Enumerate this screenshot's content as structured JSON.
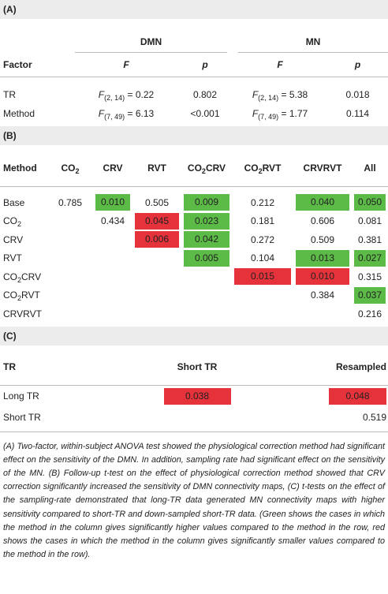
{
  "section_a": {
    "label": "(A)",
    "header": {
      "factor": "Factor",
      "groups": [
        "DMN",
        "MN"
      ],
      "columns": [
        "F",
        "p",
        "F",
        "p"
      ]
    },
    "rows": [
      {
        "factor": "TR",
        "cells": [
          [
            "F",
            "(2, 14)",
            " = 0.22"
          ],
          "0.802",
          [
            "F",
            "(2, 14)",
            " = 5.38"
          ],
          "0.018"
        ]
      },
      {
        "factor": "Method",
        "cells": [
          [
            "F",
            "(7, 49)",
            " = 6.13"
          ],
          "<0.001",
          [
            "F",
            "(7, 49)",
            " = 1.77"
          ],
          "0.114"
        ]
      }
    ]
  },
  "section_b": {
    "label": "(B)",
    "columns": [
      "Method",
      [
        "CO",
        "2"
      ],
      "CRV",
      "RVT",
      [
        "CO",
        "2",
        "CRV"
      ],
      [
        "CO",
        "2",
        "RVT"
      ],
      "CRVRVT",
      "All"
    ],
    "rows": [
      {
        "method": "Base",
        "cells": [
          "0.785",
          {
            "value": "0.010",
            "color": "#5cba47"
          },
          "0.505",
          {
            "value": "0.009",
            "color": "#5cba47"
          },
          "0.212",
          {
            "value": "0.040",
            "color": "#5cba47"
          },
          {
            "value": "0.050",
            "color": "#5cba47"
          }
        ]
      },
      {
        "method": [
          "CO",
          "2"
        ],
        "cells": [
          null,
          "0.434",
          {
            "value": "0.045",
            "color": "#e6323b"
          },
          {
            "value": "0.023",
            "color": "#5cba47"
          },
          "0.181",
          "0.606",
          "0.081"
        ]
      },
      {
        "method": "CRV",
        "cells": [
          null,
          null,
          {
            "value": "0.006",
            "color": "#e6323b"
          },
          {
            "value": "0.042",
            "color": "#5cba47"
          },
          "0.272",
          "0.509",
          "0.381"
        ]
      },
      {
        "method": "RVT",
        "cells": [
          null,
          null,
          null,
          {
            "value": "0.005",
            "color": "#5cba47"
          },
          "0.104",
          {
            "value": "0.013",
            "color": "#5cba47"
          },
          {
            "value": "0.027",
            "color": "#5cba47"
          }
        ]
      },
      {
        "method": [
          "CO",
          "2",
          "CRV"
        ],
        "cells": [
          null,
          null,
          null,
          null,
          {
            "value": "0.015",
            "color": "#e6323b"
          },
          {
            "value": "0.010",
            "color": "#e6323b"
          },
          "0.315"
        ]
      },
      {
        "method": [
          "CO",
          "2",
          "RVT"
        ],
        "cells": [
          null,
          null,
          null,
          null,
          null,
          "0.384",
          {
            "value": "0.037",
            "color": "#5cba47"
          }
        ]
      },
      {
        "method": "CRVRVT",
        "cells": [
          null,
          null,
          null,
          null,
          null,
          null,
          "0.216"
        ]
      }
    ]
  },
  "section_c": {
    "label": "(C)",
    "columns": [
      "TR",
      "Short TR",
      "Resampled"
    ],
    "rows": [
      {
        "tr": "Long TR",
        "cells": [
          {
            "value": "0.038",
            "color": "#e6323b"
          },
          {
            "value": "0.048",
            "color": "#e6323b"
          }
        ]
      },
      {
        "tr": "Short TR",
        "cells": [
          null,
          "0.519"
        ]
      }
    ]
  },
  "caption": "(A) Two-factor, within-subject ANOVA test showed the physiological correction method had significant effect on the sensitivity of the DMN. In addition, sampling rate had significant effect on the sensitivity of the MN. (B) Follow-up t-test on the effect of physiological correction method showed that CRV correction significantly increased the sensitivity of DMN connectivity maps, (C) t-tests on the effect of the sampling-rate demonstrated that long-TR data generated MN connectivity maps with higher sensitivity compared to short-TR and down-sampled short-TR data. (Green shows the cases in which the method in the column gives significantly higher values compared to the method in the row, red shows the cases in which the method in the column gives significantly smaller values compared to the method in the row)."
}
